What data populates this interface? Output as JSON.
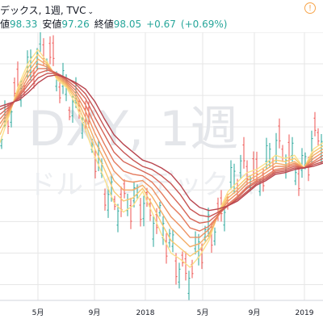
{
  "header": {
    "title": "デックス, 1週, TVC",
    "labels": {
      "high": "値",
      "low": "安値",
      "close": "終値"
    },
    "values": {
      "high": "98.33",
      "low": "97.26",
      "close": "98.05",
      "change": "+0.67",
      "change_pct": "(+0.69%)"
    }
  },
  "watermark": {
    "symbol": "DXY, 1週",
    "name": "ドル インデックス"
  },
  "colors": {
    "up": "#26a69a",
    "down": "#ef5350",
    "grid": "#e6e6e6",
    "alert": "#f7a44a",
    "ribbon": [
      "#fbe08a",
      "#f9c970",
      "#f4ad66",
      "#ee9262",
      "#e47a5d",
      "#d66657",
      "#c75452",
      "#b8454e"
    ]
  },
  "chart_data": {
    "type": "line",
    "xlabel": "",
    "ylabel": "",
    "x_ticks": [
      "5月",
      "9月",
      "2018",
      "5月",
      "9月",
      "2019"
    ],
    "series": [
      {
        "values": [
          97.0,
          98.8,
          100.7,
          102.1,
          102.9,
          102.1,
          101.0,
          100.5,
          99.4,
          97.8,
          96.1,
          94.7,
          93.2,
          92.6,
          93.0,
          93.9,
          92.6,
          91.2,
          90.0,
          89.6,
          89.1,
          89.8,
          90.8,
          92.6,
          93.9,
          94.5,
          95.1,
          95.3,
          95.7,
          96.2,
          96.0,
          96.2,
          95.4,
          96.6,
          97.0
        ]
      },
      {
        "values": [
          97.5,
          98.9,
          100.5,
          101.8,
          102.6,
          102.0,
          101.1,
          100.6,
          99.7,
          98.2,
          96.6,
          95.3,
          93.9,
          93.3,
          93.5,
          94.1,
          93.1,
          91.9,
          90.8,
          90.3,
          89.8,
          90.2,
          91.0,
          92.5,
          93.7,
          94.2,
          94.8,
          95.1,
          95.5,
          95.9,
          95.8,
          96.0,
          95.4,
          96.4,
          96.8
        ]
      },
      {
        "values": [
          97.9,
          99.0,
          100.3,
          101.5,
          102.3,
          101.9,
          101.2,
          100.7,
          99.9,
          98.6,
          97.1,
          95.9,
          94.6,
          94.0,
          94.0,
          94.3,
          93.6,
          92.6,
          91.6,
          91.0,
          90.4,
          90.6,
          91.2,
          92.4,
          93.5,
          94.0,
          94.6,
          94.9,
          95.3,
          95.7,
          95.6,
          95.8,
          95.4,
          96.2,
          96.6
        ]
      },
      {
        "values": [
          98.2,
          99.1,
          100.1,
          101.2,
          102.0,
          101.8,
          101.3,
          100.8,
          100.1,
          99.0,
          97.6,
          96.4,
          95.2,
          94.6,
          94.5,
          94.6,
          94.1,
          93.2,
          92.3,
          91.7,
          91.0,
          91.0,
          91.5,
          92.4,
          93.3,
          93.8,
          94.4,
          94.7,
          95.1,
          95.5,
          95.5,
          95.7,
          95.4,
          96.0,
          96.4
        ]
      },
      {
        "values": [
          98.5,
          99.2,
          100.0,
          100.9,
          101.7,
          101.7,
          101.4,
          100.9,
          100.3,
          99.4,
          98.1,
          96.9,
          95.8,
          95.2,
          95.0,
          94.9,
          94.5,
          93.8,
          93.0,
          92.4,
          91.6,
          91.4,
          91.7,
          92.4,
          93.1,
          93.6,
          94.2,
          94.6,
          94.9,
          95.3,
          95.4,
          95.6,
          95.4,
          95.8,
          96.2
        ]
      },
      {
        "values": [
          98.8,
          99.3,
          99.9,
          100.7,
          101.4,
          101.6,
          101.4,
          101.0,
          100.5,
          99.8,
          98.6,
          97.5,
          96.4,
          95.8,
          95.5,
          95.2,
          94.9,
          94.4,
          93.7,
          93.0,
          92.2,
          91.9,
          92.0,
          92.5,
          93.0,
          93.5,
          94.1,
          94.5,
          94.8,
          95.2,
          95.3,
          95.5,
          95.4,
          95.7,
          96.0
        ]
      },
      {
        "values": [
          99.1,
          99.4,
          99.8,
          100.4,
          101.1,
          101.4,
          101.4,
          101.1,
          100.7,
          100.1,
          99.1,
          98.0,
          97.0,
          96.4,
          95.9,
          95.5,
          95.3,
          94.9,
          94.4,
          93.7,
          92.8,
          92.4,
          92.3,
          92.6,
          93.0,
          93.4,
          93.9,
          94.4,
          94.7,
          95.1,
          95.2,
          95.4,
          95.4,
          95.6,
          95.8
        ]
      },
      {
        "values": [
          99.3,
          99.5,
          99.7,
          100.2,
          100.8,
          101.2,
          101.3,
          101.1,
          100.8,
          100.4,
          99.6,
          98.5,
          97.5,
          96.9,
          96.4,
          95.9,
          95.7,
          95.4,
          95.0,
          94.3,
          93.4,
          92.9,
          92.7,
          92.8,
          93.0,
          93.3,
          93.8,
          94.3,
          94.6,
          95.0,
          95.1,
          95.3,
          95.4,
          95.5,
          95.7
        ]
      }
    ]
  }
}
